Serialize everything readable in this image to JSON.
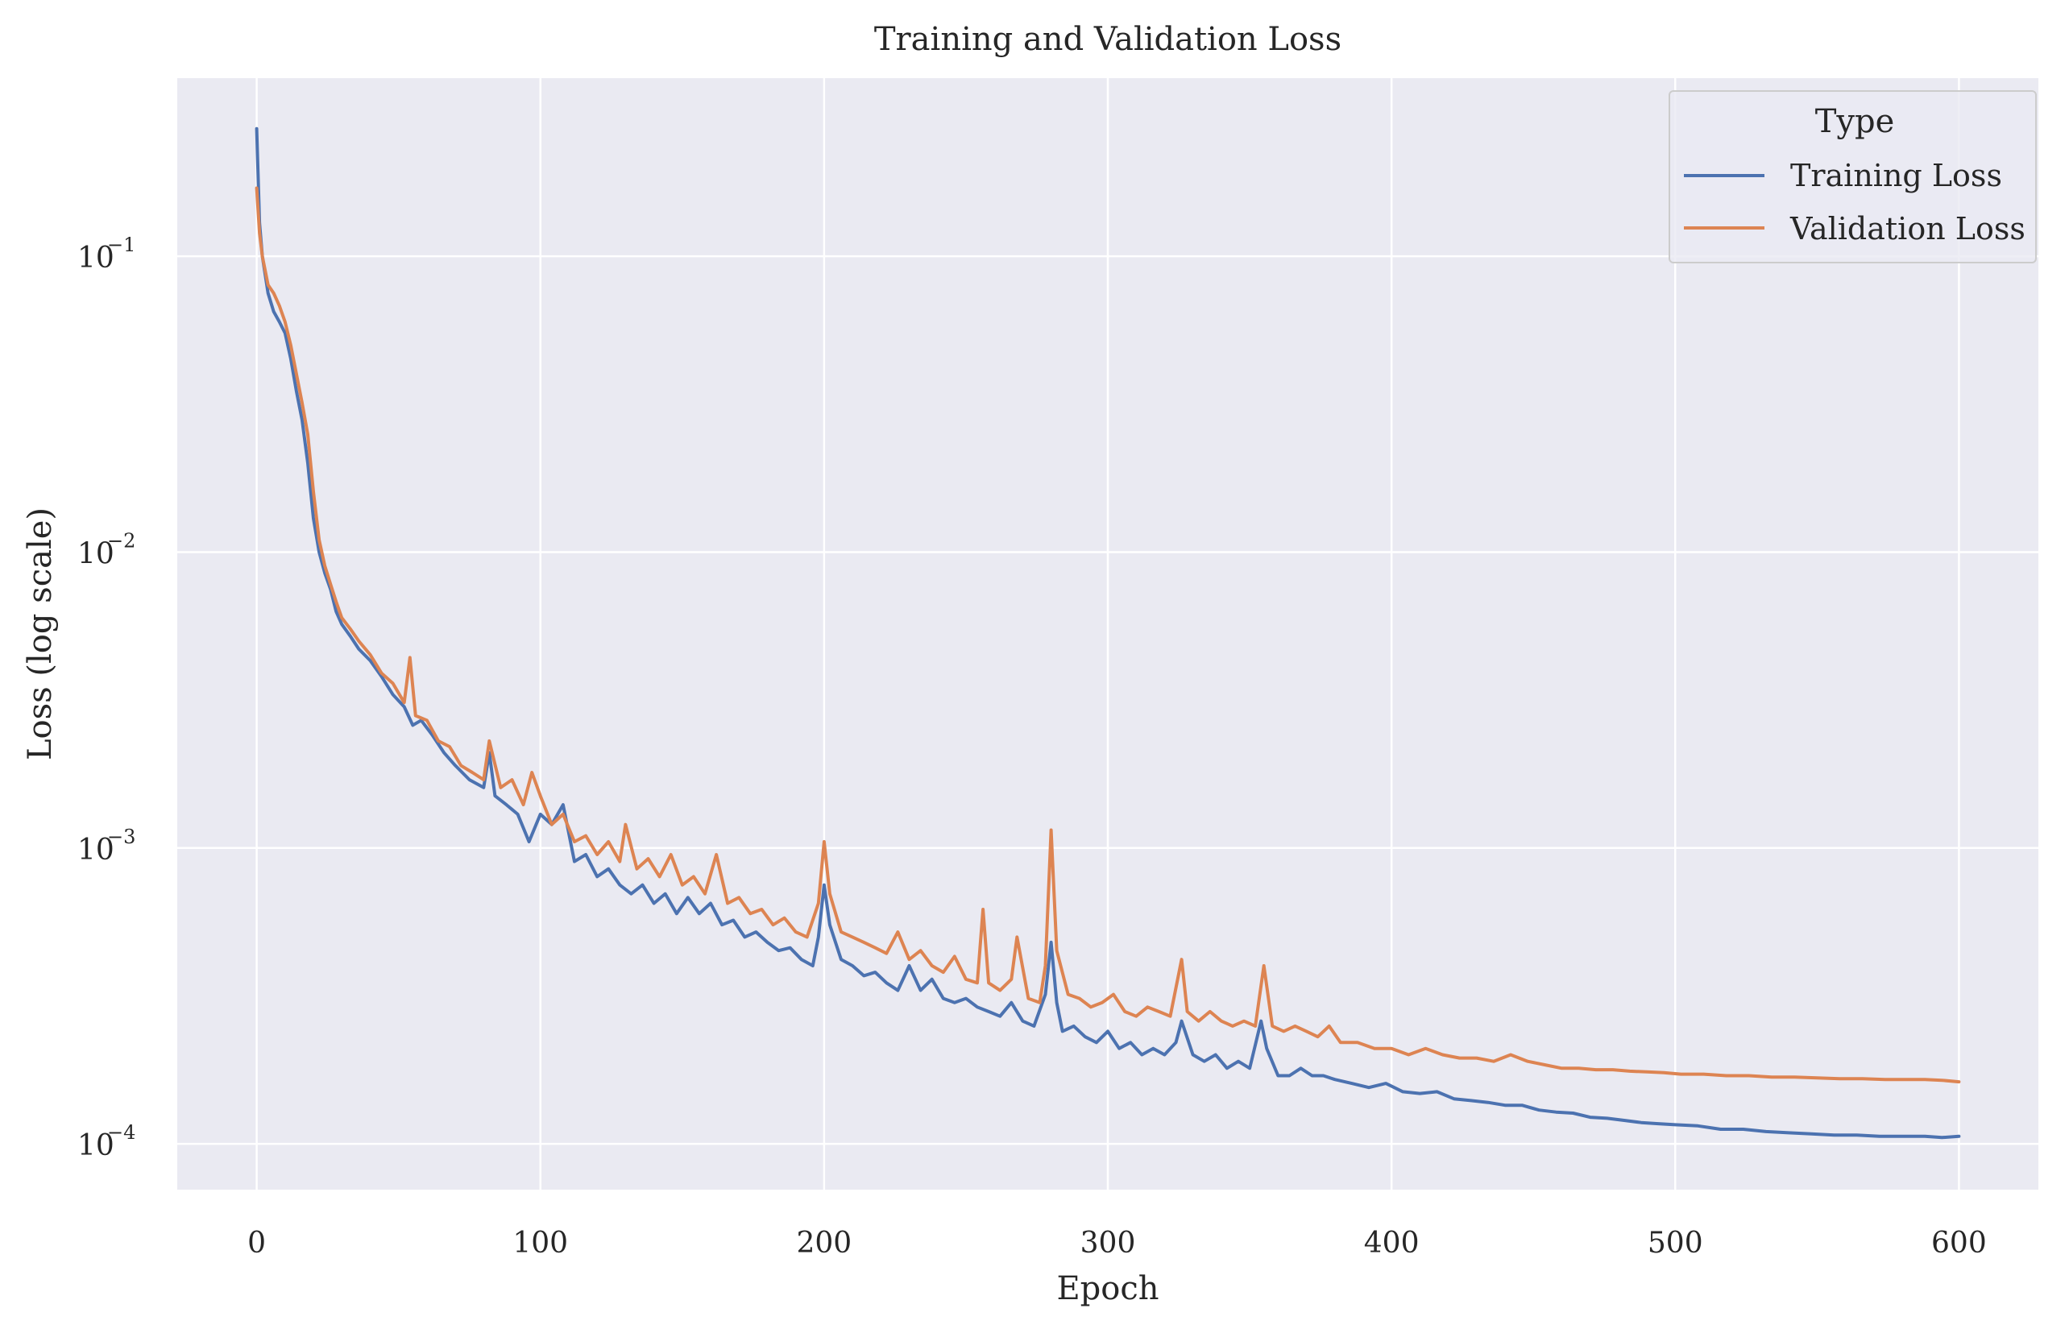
{
  "chart_data": {
    "type": "line",
    "title": "Training and Validation Loss",
    "xlabel": "Epoch",
    "ylabel": "Loss (log scale)",
    "yscale": "log",
    "xlim": [
      -28,
      628
    ],
    "ylim": [
      7e-05,
      0.4
    ],
    "grid": true,
    "legend": {
      "title": "Type",
      "placement": "top-right",
      "entries": [
        "Training Loss",
        "Validation Loss"
      ]
    },
    "x_ticks": [
      {
        "value": 0,
        "label": "0"
      },
      {
        "value": 100,
        "label": "100"
      },
      {
        "value": 200,
        "label": "200"
      },
      {
        "value": 300,
        "label": "300"
      },
      {
        "value": 400,
        "label": "400"
      },
      {
        "value": 500,
        "label": "500"
      },
      {
        "value": 600,
        "label": "600"
      }
    ],
    "y_ticks": [
      {
        "value": 0.1,
        "base": "10",
        "exp": "−1"
      },
      {
        "value": 0.01,
        "base": "10",
        "exp": "−2"
      },
      {
        "value": 0.001,
        "base": "10",
        "exp": "−3"
      },
      {
        "value": 0.0001,
        "base": "10",
        "exp": "−4"
      }
    ],
    "series": [
      {
        "name": "Training Loss",
        "color": "#4C72B0",
        "points": [
          [
            0,
            0.27
          ],
          [
            1,
            0.13
          ],
          [
            2,
            0.1
          ],
          [
            4,
            0.075
          ],
          [
            6,
            0.065
          ],
          [
            8,
            0.06
          ],
          [
            10,
            0.055
          ],
          [
            12,
            0.045
          ],
          [
            14,
            0.035
          ],
          [
            16,
            0.028
          ],
          [
            18,
            0.02
          ],
          [
            20,
            0.013
          ],
          [
            22,
            0.01
          ],
          [
            24,
            0.0085
          ],
          [
            26,
            0.0075
          ],
          [
            28,
            0.0063
          ],
          [
            30,
            0.0057
          ],
          [
            33,
            0.0052
          ],
          [
            36,
            0.0047
          ],
          [
            40,
            0.0043
          ],
          [
            44,
            0.0038
          ],
          [
            48,
            0.0033
          ],
          [
            52,
            0.003
          ],
          [
            55,
            0.0026
          ],
          [
            58,
            0.0027
          ],
          [
            62,
            0.0024
          ],
          [
            66,
            0.0021
          ],
          [
            70,
            0.0019
          ],
          [
            75,
            0.0017
          ],
          [
            80,
            0.0016
          ],
          [
            82,
            0.0021
          ],
          [
            84,
            0.0015
          ],
          [
            88,
            0.0014
          ],
          [
            92,
            0.0013
          ],
          [
            96,
            0.00105
          ],
          [
            100,
            0.0013
          ],
          [
            104,
            0.0012
          ],
          [
            108,
            0.0014
          ],
          [
            112,
            0.0009
          ],
          [
            116,
            0.00095
          ],
          [
            120,
            0.0008
          ],
          [
            124,
            0.00085
          ],
          [
            128,
            0.00075
          ],
          [
            132,
            0.0007
          ],
          [
            136,
            0.00075
          ],
          [
            140,
            0.00065
          ],
          [
            144,
            0.0007
          ],
          [
            148,
            0.0006
          ],
          [
            152,
            0.00068
          ],
          [
            156,
            0.0006
          ],
          [
            160,
            0.00065
          ],
          [
            164,
            0.00055
          ],
          [
            168,
            0.00057
          ],
          [
            172,
            0.0005
          ],
          [
            176,
            0.00052
          ],
          [
            180,
            0.00048
          ],
          [
            184,
            0.00045
          ],
          [
            188,
            0.00046
          ],
          [
            192,
            0.00042
          ],
          [
            196,
            0.0004
          ],
          [
            198,
            0.0005
          ],
          [
            200,
            0.00075
          ],
          [
            202,
            0.00055
          ],
          [
            206,
            0.00042
          ],
          [
            210,
            0.0004
          ],
          [
            214,
            0.00037
          ],
          [
            218,
            0.00038
          ],
          [
            222,
            0.00035
          ],
          [
            226,
            0.00033
          ],
          [
            230,
            0.0004
          ],
          [
            234,
            0.00033
          ],
          [
            238,
            0.00036
          ],
          [
            242,
            0.00031
          ],
          [
            246,
            0.0003
          ],
          [
            250,
            0.00031
          ],
          [
            254,
            0.00029
          ],
          [
            258,
            0.00028
          ],
          [
            262,
            0.00027
          ],
          [
            266,
            0.0003
          ],
          [
            270,
            0.00026
          ],
          [
            274,
            0.00025
          ],
          [
            278,
            0.00032
          ],
          [
            280,
            0.00048
          ],
          [
            282,
            0.0003
          ],
          [
            284,
            0.00024
          ],
          [
            288,
            0.00025
          ],
          [
            292,
            0.00023
          ],
          [
            296,
            0.00022
          ],
          [
            300,
            0.00024
          ],
          [
            304,
            0.00021
          ],
          [
            308,
            0.00022
          ],
          [
            312,
            0.0002
          ],
          [
            316,
            0.00021
          ],
          [
            320,
            0.0002
          ],
          [
            324,
            0.00022
          ],
          [
            326,
            0.00026
          ],
          [
            330,
            0.0002
          ],
          [
            334,
            0.00019
          ],
          [
            338,
            0.0002
          ],
          [
            342,
            0.00018
          ],
          [
            346,
            0.00019
          ],
          [
            350,
            0.00018
          ],
          [
            354,
            0.00026
          ],
          [
            356,
            0.00021
          ],
          [
            360,
            0.00017
          ],
          [
            364,
            0.00017
          ],
          [
            368,
            0.00018
          ],
          [
            372,
            0.00017
          ],
          [
            376,
            0.00017
          ],
          [
            380,
            0.000165
          ],
          [
            386,
            0.00016
          ],
          [
            392,
            0.000155
          ],
          [
            398,
            0.00016
          ],
          [
            404,
            0.00015
          ],
          [
            410,
            0.000148
          ],
          [
            416,
            0.00015
          ],
          [
            422,
            0.000142
          ],
          [
            428,
            0.00014
          ],
          [
            434,
            0.000138
          ],
          [
            440,
            0.000135
          ],
          [
            446,
            0.000135
          ],
          [
            452,
            0.00013
          ],
          [
            458,
            0.000128
          ],
          [
            464,
            0.000127
          ],
          [
            470,
            0.000123
          ],
          [
            476,
            0.000122
          ],
          [
            482,
            0.00012
          ],
          [
            488,
            0.000118
          ],
          [
            494,
            0.000117
          ],
          [
            500,
            0.000116
          ],
          [
            508,
            0.000115
          ],
          [
            516,
            0.000112
          ],
          [
            524,
            0.000112
          ],
          [
            532,
            0.00011
          ],
          [
            540,
            0.000109
          ],
          [
            548,
            0.000108
          ],
          [
            556,
            0.000107
          ],
          [
            564,
            0.000107
          ],
          [
            572,
            0.000106
          ],
          [
            580,
            0.000106
          ],
          [
            588,
            0.000106
          ],
          [
            594,
            0.000105
          ],
          [
            600,
            0.000106
          ]
        ]
      },
      {
        "name": "Validation Loss",
        "color": "#DD8452",
        "points": [
          [
            0,
            0.17
          ],
          [
            1,
            0.12
          ],
          [
            2,
            0.1
          ],
          [
            4,
            0.08
          ],
          [
            6,
            0.075
          ],
          [
            8,
            0.068
          ],
          [
            10,
            0.06
          ],
          [
            12,
            0.05
          ],
          [
            14,
            0.04
          ],
          [
            16,
            0.032
          ],
          [
            18,
            0.025
          ],
          [
            20,
            0.016
          ],
          [
            22,
            0.011
          ],
          [
            24,
            0.009
          ],
          [
            26,
            0.0078
          ],
          [
            28,
            0.0068
          ],
          [
            30,
            0.006
          ],
          [
            33,
            0.0055
          ],
          [
            36,
            0.005
          ],
          [
            40,
            0.0045
          ],
          [
            44,
            0.0039
          ],
          [
            48,
            0.0036
          ],
          [
            52,
            0.0031
          ],
          [
            54,
            0.0044
          ],
          [
            56,
            0.0028
          ],
          [
            60,
            0.0027
          ],
          [
            64,
            0.0023
          ],
          [
            68,
            0.0022
          ],
          [
            72,
            0.0019
          ],
          [
            76,
            0.0018
          ],
          [
            80,
            0.0017
          ],
          [
            82,
            0.0023
          ],
          [
            86,
            0.0016
          ],
          [
            90,
            0.0017
          ],
          [
            94,
            0.0014
          ],
          [
            97,
            0.0018
          ],
          [
            100,
            0.0015
          ],
          [
            104,
            0.0012
          ],
          [
            108,
            0.0013
          ],
          [
            112,
            0.00105
          ],
          [
            116,
            0.0011
          ],
          [
            120,
            0.00095
          ],
          [
            124,
            0.00105
          ],
          [
            128,
            0.0009
          ],
          [
            130,
            0.0012
          ],
          [
            134,
            0.00085
          ],
          [
            138,
            0.00092
          ],
          [
            142,
            0.0008
          ],
          [
            146,
            0.00095
          ],
          [
            150,
            0.00075
          ],
          [
            154,
            0.0008
          ],
          [
            158,
            0.0007
          ],
          [
            162,
            0.00095
          ],
          [
            166,
            0.00065
          ],
          [
            170,
            0.00068
          ],
          [
            174,
            0.0006
          ],
          [
            178,
            0.00062
          ],
          [
            182,
            0.00055
          ],
          [
            186,
            0.00058
          ],
          [
            190,
            0.00052
          ],
          [
            194,
            0.0005
          ],
          [
            198,
            0.00065
          ],
          [
            200,
            0.00105
          ],
          [
            202,
            0.0007
          ],
          [
            206,
            0.00052
          ],
          [
            210,
            0.0005
          ],
          [
            214,
            0.00048
          ],
          [
            218,
            0.00046
          ],
          [
            222,
            0.00044
          ],
          [
            226,
            0.00052
          ],
          [
            230,
            0.00042
          ],
          [
            234,
            0.00045
          ],
          [
            238,
            0.0004
          ],
          [
            242,
            0.00038
          ],
          [
            246,
            0.00043
          ],
          [
            250,
            0.00036
          ],
          [
            254,
            0.00035
          ],
          [
            256,
            0.00062
          ],
          [
            258,
            0.00035
          ],
          [
            262,
            0.00033
          ],
          [
            266,
            0.00036
          ],
          [
            268,
            0.0005
          ],
          [
            272,
            0.00031
          ],
          [
            276,
            0.0003
          ],
          [
            278,
            0.0004
          ],
          [
            280,
            0.00115
          ],
          [
            282,
            0.00045
          ],
          [
            286,
            0.00032
          ],
          [
            290,
            0.00031
          ],
          [
            294,
            0.00029
          ],
          [
            298,
            0.0003
          ],
          [
            302,
            0.00032
          ],
          [
            306,
            0.00028
          ],
          [
            310,
            0.00027
          ],
          [
            314,
            0.00029
          ],
          [
            318,
            0.00028
          ],
          [
            322,
            0.00027
          ],
          [
            326,
            0.00042
          ],
          [
            328,
            0.00028
          ],
          [
            332,
            0.00026
          ],
          [
            336,
            0.00028
          ],
          [
            340,
            0.00026
          ],
          [
            344,
            0.00025
          ],
          [
            348,
            0.00026
          ],
          [
            352,
            0.00025
          ],
          [
            355,
            0.0004
          ],
          [
            358,
            0.00025
          ],
          [
            362,
            0.00024
          ],
          [
            366,
            0.00025
          ],
          [
            370,
            0.00024
          ],
          [
            374,
            0.00023
          ],
          [
            378,
            0.00025
          ],
          [
            382,
            0.00022
          ],
          [
            388,
            0.00022
          ],
          [
            394,
            0.00021
          ],
          [
            400,
            0.00021
          ],
          [
            406,
            0.0002
          ],
          [
            412,
            0.00021
          ],
          [
            418,
            0.0002
          ],
          [
            424,
            0.000195
          ],
          [
            430,
            0.000195
          ],
          [
            436,
            0.00019
          ],
          [
            442,
            0.0002
          ],
          [
            448,
            0.00019
          ],
          [
            454,
            0.000185
          ],
          [
            460,
            0.00018
          ],
          [
            466,
            0.00018
          ],
          [
            472,
            0.000178
          ],
          [
            478,
            0.000178
          ],
          [
            484,
            0.000176
          ],
          [
            490,
            0.000175
          ],
          [
            496,
            0.000174
          ],
          [
            502,
            0.000172
          ],
          [
            510,
            0.000172
          ],
          [
            518,
            0.00017
          ],
          [
            526,
            0.00017
          ],
          [
            534,
            0.000168
          ],
          [
            542,
            0.000168
          ],
          [
            550,
            0.000167
          ],
          [
            558,
            0.000166
          ],
          [
            566,
            0.000166
          ],
          [
            574,
            0.000165
          ],
          [
            582,
            0.000165
          ],
          [
            588,
            0.000165
          ],
          [
            594,
            0.000164
          ],
          [
            600,
            0.000162
          ]
        ]
      }
    ]
  }
}
